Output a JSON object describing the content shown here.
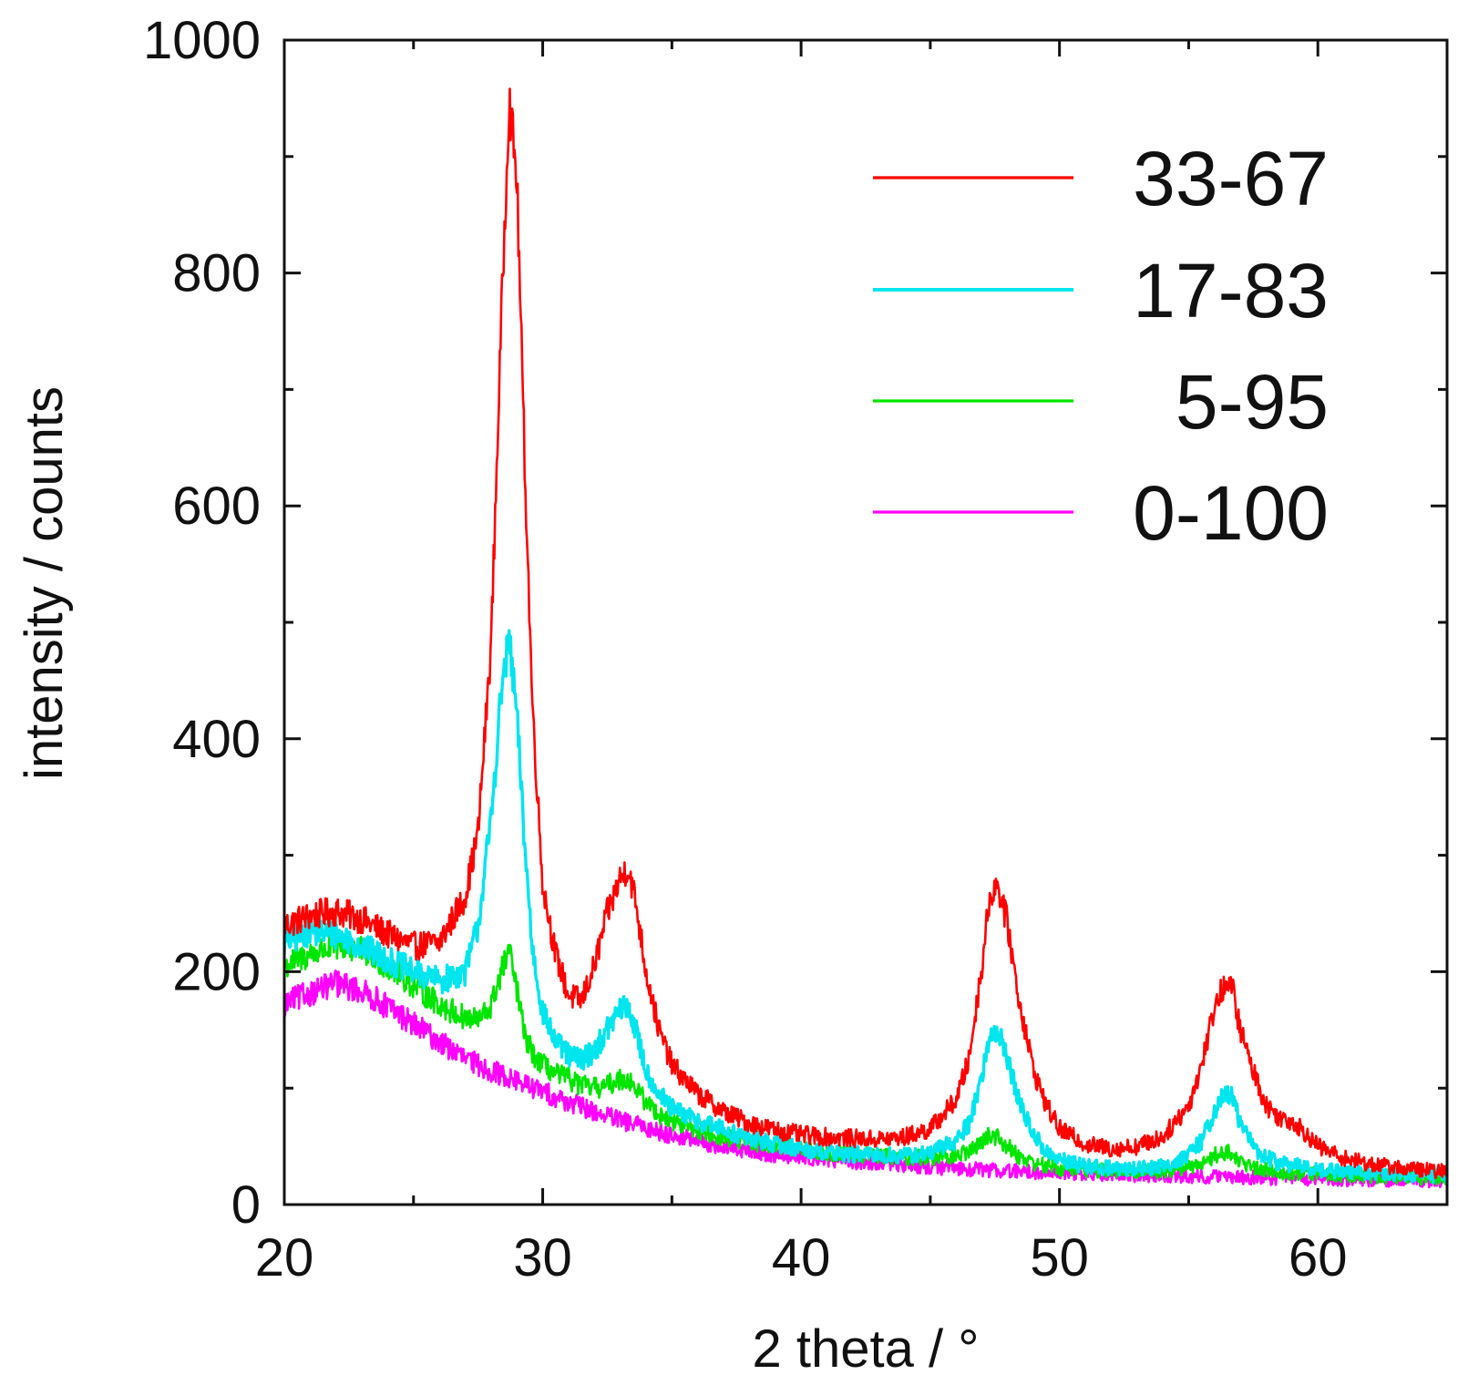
{
  "chart_data": {
    "type": "line",
    "title": "",
    "xlabel": "2 theta / °",
    "ylabel": "intensity / counts",
    "xlim": [
      20,
      65
    ],
    "ylim": [
      0,
      1000
    ],
    "x_major_ticks": [
      20,
      30,
      40,
      50,
      60
    ],
    "x_tick_labels": [
      "20",
      "30",
      "40",
      "50",
      "60"
    ],
    "x_minor_ticks": [
      25,
      35,
      45,
      55,
      65
    ],
    "y_major_ticks": [
      0,
      200,
      400,
      600,
      800,
      1000
    ],
    "y_tick_labels": [
      "0",
      "200",
      "400",
      "600",
      "800",
      "1000"
    ],
    "y_minor_ticks": [
      100,
      300,
      500,
      700,
      900
    ],
    "grid": false,
    "legend_position": "top-right",
    "series": [
      {
        "name": "33-67",
        "color": "#ff0000",
        "x": [
          20,
          21,
          22,
          23,
          24,
          25,
          26,
          27,
          27.5,
          28,
          28.4,
          28.7,
          29,
          29.3,
          29.6,
          30,
          30.5,
          31,
          31.5,
          32,
          32.5,
          33,
          33.3,
          33.6,
          34,
          34.5,
          35,
          36,
          37,
          38,
          39,
          40,
          41,
          42,
          43,
          44,
          45,
          46,
          46.5,
          47,
          47.3,
          47.6,
          48,
          48.4,
          49,
          49.5,
          50,
          51,
          52,
          53,
          54,
          55,
          55.5,
          56,
          56.4,
          56.7,
          57,
          57.5,
          58,
          58.5,
          59,
          59.5,
          60,
          61,
          62,
          63,
          64,
          65
        ],
        "values": [
          240,
          248,
          252,
          245,
          232,
          222,
          225,
          265,
          320,
          480,
          760,
          950,
          880,
          640,
          430,
          275,
          215,
          180,
          175,
          205,
          250,
          280,
          290,
          260,
          200,
          150,
          120,
          95,
          80,
          70,
          64,
          60,
          58,
          57,
          56,
          58,
          65,
          90,
          125,
          205,
          265,
          275,
          240,
          180,
          115,
          85,
          65,
          52,
          48,
          50,
          58,
          85,
          120,
          170,
          190,
          185,
          150,
          115,
          85,
          75,
          72,
          62,
          50,
          40,
          35,
          32,
          30,
          28
        ]
      },
      {
        "name": "17-83",
        "color": "#00e5ee",
        "x": [
          20,
          21,
          22,
          23,
          24,
          25,
          26,
          27,
          27.5,
          28,
          28.4,
          28.7,
          29,
          29.3,
          29.6,
          30,
          30.5,
          31,
          31.5,
          32,
          32.5,
          33,
          33.3,
          33.6,
          34,
          34.5,
          35,
          36,
          37,
          38,
          39,
          40,
          41,
          42,
          43,
          44,
          45,
          46,
          46.5,
          47,
          47.3,
          47.6,
          48,
          48.4,
          49,
          49.5,
          50,
          51,
          52,
          53,
          54,
          55,
          55.5,
          56,
          56.4,
          56.7,
          57,
          57.5,
          58,
          58.5,
          59,
          59.5,
          60,
          61,
          62,
          63,
          64,
          65
        ],
        "values": [
          225,
          235,
          232,
          222,
          210,
          200,
          192,
          200,
          240,
          330,
          440,
          485,
          420,
          310,
          220,
          165,
          140,
          128,
          125,
          132,
          150,
          168,
          170,
          150,
          115,
          95,
          82,
          72,
          64,
          57,
          52,
          48,
          45,
          43,
          42,
          42,
          44,
          55,
          70,
          110,
          145,
          150,
          125,
          90,
          60,
          45,
          38,
          33,
          31,
          31,
          33,
          42,
          55,
          80,
          95,
          92,
          70,
          50,
          40,
          36,
          34,
          32,
          30,
          28,
          27,
          26,
          25,
          25
        ]
      },
      {
        "name": "5-95",
        "color": "#00e600",
        "x": [
          20,
          21,
          22,
          23,
          24,
          25,
          26,
          27,
          27.5,
          28,
          28.4,
          28.7,
          29,
          29.3,
          29.6,
          30,
          30.5,
          31,
          31.5,
          32,
          32.5,
          33,
          33.3,
          33.6,
          34,
          34.5,
          35,
          36,
          37,
          38,
          39,
          40,
          41,
          42,
          43,
          44,
          45,
          46,
          46.5,
          47,
          47.3,
          47.6,
          48,
          48.4,
          49,
          49.5,
          50,
          51,
          52,
          53,
          54,
          55,
          55.5,
          56,
          56.4,
          56.7,
          57,
          57.5,
          58,
          58.5,
          59,
          59.5,
          60,
          61,
          62,
          63,
          64,
          65
        ],
        "values": [
          205,
          215,
          222,
          218,
          205,
          188,
          172,
          160,
          158,
          170,
          200,
          218,
          185,
          145,
          130,
          120,
          112,
          108,
          102,
          100,
          102,
          108,
          108,
          100,
          88,
          78,
          72,
          64,
          58,
          53,
          50,
          48,
          45,
          43,
          42,
          41,
          40,
          42,
          46,
          54,
          60,
          58,
          50,
          42,
          36,
          33,
          31,
          30,
          29,
          29,
          29,
          32,
          36,
          42,
          45,
          43,
          37,
          32,
          30,
          28,
          27,
          27,
          26,
          25,
          24,
          24,
          23,
          23
        ]
      },
      {
        "name": "0-100",
        "color": "#ff00ff",
        "x": [
          20,
          21,
          22,
          23,
          24,
          25,
          26,
          27,
          28,
          29,
          30,
          31,
          32,
          33,
          34,
          35,
          36,
          37,
          38,
          39,
          40,
          42,
          44,
          46,
          48,
          50,
          52,
          54,
          56,
          58,
          60,
          62,
          64,
          65
        ],
        "values": [
          172,
          182,
          190,
          183,
          170,
          155,
          140,
          125,
          115,
          106,
          97,
          88,
          80,
          72,
          66,
          60,
          54,
          50,
          46,
          43,
          41,
          37,
          34,
          31,
          29,
          27,
          26,
          25,
          24,
          23,
          22,
          21,
          21,
          20
        ]
      }
    ]
  }
}
